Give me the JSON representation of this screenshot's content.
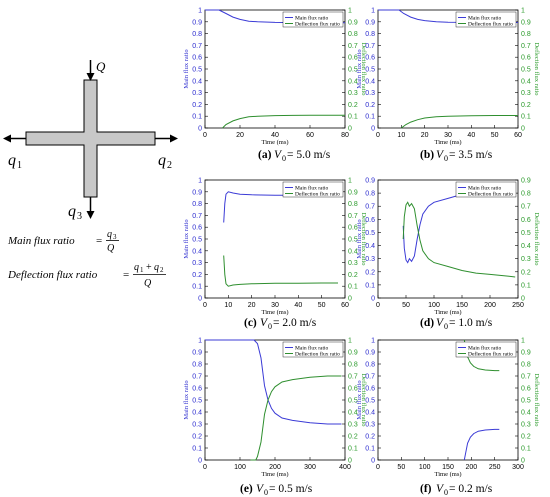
{
  "diagram": {
    "label_Q": "Q",
    "label_q1": "q",
    "label_q1_sub": "1",
    "label_q2": "q",
    "label_q2_sub": "2",
    "label_q3": "q",
    "label_q3_sub": "3"
  },
  "formulas": {
    "main_text": "Main   flux   ratio",
    "main_num": "q",
    "main_num_sub": "3",
    "main_den": "Q",
    "defl_text": "Deflection   flux   ratio",
    "defl_num_a": "q",
    "defl_num_a_sub": "1",
    "defl_plus": "+",
    "defl_num_b": "q",
    "defl_num_b_sub": "2",
    "defl_den": "Q",
    "equals": "="
  },
  "colors": {
    "main": "#3b3bd6",
    "deflection": "#2f8f2f",
    "axis": "#000000",
    "left_tick": "#2b2bcf",
    "right_tick": "#2a9a2a"
  },
  "chart_data": [
    {
      "type": "line",
      "id": "a",
      "caption_letter": "(a)",
      "caption_var": "V",
      "caption_sub": "0",
      "caption_value": " = 5.0 m/s",
      "xlabel": "Time (ms)",
      "ylabel_left": "Main flux ratio",
      "ylabel_right": "Deflection flux ratio",
      "xlim": [
        0,
        80
      ],
      "xticks": [
        0,
        20,
        40,
        60,
        80
      ],
      "ylim": [
        0,
        1
      ],
      "yticks": [
        0,
        0.1,
        0.2,
        0.3,
        0.4,
        0.5,
        0.6,
        0.7,
        0.8,
        0.9,
        1
      ],
      "legend": [
        "Main flux ratio",
        "Deflection flux ratio"
      ],
      "legend_position": "top-right",
      "series": [
        {
          "name": "Main flux ratio",
          "x": [
            0,
            8,
            12,
            16,
            20,
            25,
            30,
            40,
            50,
            60,
            70,
            80
          ],
          "y": [
            1.0,
            1.0,
            0.97,
            0.94,
            0.92,
            0.905,
            0.9,
            0.895,
            0.893,
            0.892,
            0.892,
            0.892
          ]
        },
        {
          "name": "Deflection flux ratio",
          "x": [
            10,
            12,
            16,
            20,
            25,
            30,
            40,
            50,
            60,
            70,
            80
          ],
          "y": [
            0.0,
            0.03,
            0.06,
            0.08,
            0.095,
            0.1,
            0.105,
            0.107,
            0.108,
            0.108,
            0.108
          ]
        }
      ]
    },
    {
      "type": "line",
      "id": "b",
      "caption_letter": "(b)",
      "caption_var": "V",
      "caption_sub": "0",
      "caption_value": " = 3.5 m/s",
      "xlabel": "Time (ms)",
      "ylabel_left": "Main flux ratio",
      "ylabel_right": "Deflection flux ratio",
      "xlim": [
        0,
        60
      ],
      "xticks": [
        0,
        10,
        20,
        30,
        40,
        50,
        60
      ],
      "ylim": [
        0,
        1
      ],
      "yticks": [
        0,
        0.1,
        0.2,
        0.3,
        0.4,
        0.5,
        0.6,
        0.7,
        0.8,
        0.9,
        1
      ],
      "legend": [
        "Main flux ratio",
        "Deflection flux ratio"
      ],
      "legend_position": "top-right",
      "series": [
        {
          "name": "Main flux ratio",
          "x": [
            0,
            9,
            11,
            14,
            17,
            20,
            25,
            30,
            40,
            50,
            60
          ],
          "y": [
            1.0,
            1.0,
            0.97,
            0.94,
            0.92,
            0.91,
            0.9,
            0.897,
            0.895,
            0.894,
            0.894
          ]
        },
        {
          "name": "Deflection flux ratio",
          "x": [
            10,
            12,
            14,
            17,
            20,
            25,
            30,
            40,
            50,
            60
          ],
          "y": [
            0.0,
            0.03,
            0.05,
            0.07,
            0.085,
            0.095,
            0.1,
            0.104,
            0.106,
            0.106
          ]
        }
      ]
    },
    {
      "type": "line",
      "id": "c",
      "caption_letter": "(c)",
      "caption_var": "V",
      "caption_sub": "0",
      "caption_value": " = 2.0 m/s",
      "xlabel": "Time (ms)",
      "ylabel_left": "Main flux ratio",
      "ylabel_right": "Deflection flux ratio",
      "xlim": [
        0,
        60
      ],
      "xticks": [
        0,
        10,
        20,
        30,
        40,
        50,
        60
      ],
      "ylim": [
        0,
        1
      ],
      "yticks": [
        0,
        0.1,
        0.2,
        0.3,
        0.4,
        0.5,
        0.6,
        0.7,
        0.8,
        0.9,
        1
      ],
      "legend": [
        "Main flux ratio",
        "Deflection flux ratio"
      ],
      "legend_position": "top-right",
      "series": [
        {
          "name": "Main flux ratio",
          "x": [
            8,
            8.5,
            9,
            10,
            12,
            15,
            20,
            30,
            40,
            50,
            57
          ],
          "y": [
            0.64,
            0.8,
            0.88,
            0.9,
            0.89,
            0.88,
            0.875,
            0.87,
            0.87,
            0.87,
            0.87
          ]
        },
        {
          "name": "Deflection flux ratio",
          "x": [
            8,
            8.5,
            9,
            10,
            12,
            15,
            20,
            30,
            40,
            50,
            57
          ],
          "y": [
            0.36,
            0.2,
            0.12,
            0.1,
            0.11,
            0.115,
            0.12,
            0.125,
            0.125,
            0.127,
            0.127
          ]
        }
      ]
    },
    {
      "type": "line",
      "id": "d",
      "caption_letter": "(d)",
      "caption_var": "V",
      "caption_sub": "0",
      "caption_value": " = 1.0 m/s",
      "xlabel": "Time (ms)",
      "ylabel_left": "Main flux ratio",
      "ylabel_right": "Deflection flux ratio",
      "xlim": [
        0,
        250
      ],
      "xticks": [
        0,
        50,
        100,
        150,
        200,
        250
      ],
      "ylim": [
        0,
        0.9
      ],
      "yticks": [
        0,
        0.1,
        0.2,
        0.3,
        0.4,
        0.5,
        0.6,
        0.7,
        0.8,
        0.9
      ],
      "legend": [
        "Main flux ratio",
        "Deflection flux ratio"
      ],
      "legend_position": "top-right",
      "series": [
        {
          "name": "Main flux ratio",
          "x": [
            45,
            47,
            50,
            53,
            56,
            60,
            65,
            70,
            75,
            80,
            90,
            100,
            125,
            150,
            175,
            200,
            225,
            245
          ],
          "y": [
            0.55,
            0.38,
            0.29,
            0.27,
            0.3,
            0.28,
            0.32,
            0.45,
            0.56,
            0.64,
            0.7,
            0.73,
            0.76,
            0.79,
            0.81,
            0.82,
            0.83,
            0.84
          ]
        },
        {
          "name": "Deflection flux ratio",
          "x": [
            45,
            47,
            50,
            53,
            56,
            60,
            65,
            70,
            75,
            80,
            90,
            100,
            125,
            150,
            175,
            200,
            225,
            245
          ],
          "y": [
            0.45,
            0.62,
            0.71,
            0.73,
            0.7,
            0.72,
            0.68,
            0.55,
            0.44,
            0.36,
            0.3,
            0.27,
            0.24,
            0.21,
            0.19,
            0.18,
            0.17,
            0.16
          ]
        }
      ]
    },
    {
      "type": "line",
      "id": "e",
      "caption_letter": "(e)",
      "caption_var": "V",
      "caption_sub": "0",
      "caption_value": " = 0.5 m/s",
      "xlabel": "Time (ms)",
      "ylabel_left": "Main flux ratio",
      "ylabel_right": "Deflection flux ratio",
      "xlim": [
        0,
        400
      ],
      "xticks": [
        0,
        100,
        200,
        300,
        400
      ],
      "ylim": [
        0,
        1
      ],
      "yticks": [
        0,
        0.1,
        0.2,
        0.3,
        0.4,
        0.5,
        0.6,
        0.7,
        0.8,
        0.9,
        1
      ],
      "legend": [
        "Main flux ratio",
        "Deflection flux ratio"
      ],
      "legend_position": "top-right",
      "series": [
        {
          "name": "Main flux ratio",
          "x": [
            0,
            140,
            150,
            160,
            170,
            180,
            190,
            200,
            220,
            250,
            300,
            350,
            390
          ],
          "y": [
            1.0,
            1.0,
            0.97,
            0.85,
            0.62,
            0.5,
            0.43,
            0.39,
            0.35,
            0.33,
            0.31,
            0.3,
            0.3
          ]
        },
        {
          "name": "Deflection flux ratio",
          "x": [
            130,
            145,
            150,
            160,
            170,
            180,
            190,
            200,
            220,
            250,
            300,
            350,
            390
          ],
          "y": [
            0.0,
            0.0,
            0.03,
            0.15,
            0.38,
            0.5,
            0.57,
            0.61,
            0.65,
            0.67,
            0.69,
            0.7,
            0.7
          ]
        }
      ]
    },
    {
      "type": "line",
      "id": "f",
      "caption_letter": "(f)",
      "caption_var": "V",
      "caption_sub": "0",
      "caption_value": " = 0.2 m/s",
      "xlabel": "Time (ms)",
      "ylabel_left": "Main flux ratio",
      "ylabel_right": "Deflection flux ratio",
      "xlim": [
        0,
        300
      ],
      "xticks": [
        0,
        50,
        100,
        150,
        200,
        250,
        300
      ],
      "ylim": [
        0,
        1
      ],
      "yticks": [
        0,
        0.1,
        0.2,
        0.3,
        0.4,
        0.5,
        0.6,
        0.7,
        0.8,
        0.9,
        1
      ],
      "legend": [
        "Main flux ratio",
        "Deflection flux ratio"
      ],
      "legend_position": "top-right",
      "series": [
        {
          "name": "Main flux ratio",
          "x": [
            185,
            188,
            192,
            198,
            205,
            215,
            230,
            250,
            260
          ],
          "y": [
            0.0,
            0.06,
            0.14,
            0.19,
            0.22,
            0.24,
            0.25,
            0.255,
            0.255
          ]
        },
        {
          "name": "Deflection flux ratio",
          "x": [
            185,
            188,
            192,
            198,
            205,
            215,
            230,
            250,
            260
          ],
          "y": [
            1.0,
            0.94,
            0.86,
            0.81,
            0.78,
            0.76,
            0.75,
            0.745,
            0.745
          ]
        }
      ]
    }
  ]
}
